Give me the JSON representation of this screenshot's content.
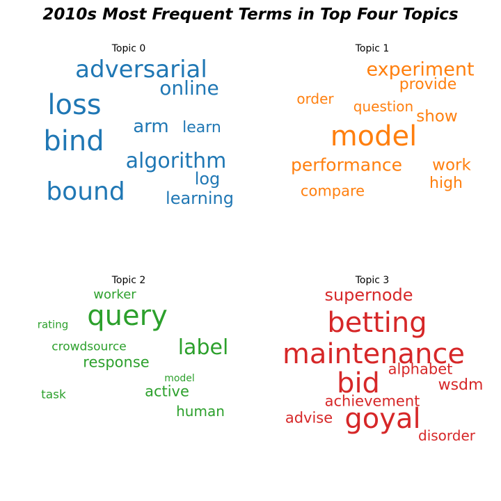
{
  "title": "2010s Most Frequent Terms in Top Four Topics",
  "chart_data": {
    "type": "wordcloud",
    "panels": [
      {
        "title": "Topic 0",
        "color": "#1f77b4",
        "words": [
          {
            "text": "adversarial",
            "weight": 0.85
          },
          {
            "text": "loss",
            "weight": 1.0
          },
          {
            "text": "online",
            "weight": 0.75
          },
          {
            "text": "bind",
            "weight": 1.0
          },
          {
            "text": "arm",
            "weight": 0.65
          },
          {
            "text": "learn",
            "weight": 0.6
          },
          {
            "text": "algorithm",
            "weight": 0.78
          },
          {
            "text": "log",
            "weight": 0.6
          },
          {
            "text": "bound",
            "weight": 0.95
          },
          {
            "text": "learning",
            "weight": 0.6
          }
        ]
      },
      {
        "title": "Topic 1",
        "color": "#ff7f0e",
        "words": [
          {
            "text": "experiment",
            "weight": 0.7
          },
          {
            "text": "provide",
            "weight": 0.6
          },
          {
            "text": "order",
            "weight": 0.5
          },
          {
            "text": "question",
            "weight": 0.5
          },
          {
            "text": "show",
            "weight": 0.6
          },
          {
            "text": "model",
            "weight": 1.0
          },
          {
            "text": "performance",
            "weight": 0.65
          },
          {
            "text": "work",
            "weight": 0.6
          },
          {
            "text": "high",
            "weight": 0.55
          },
          {
            "text": "compare",
            "weight": 0.5
          }
        ]
      },
      {
        "title": "Topic 2",
        "color": "#2ca02c",
        "words": [
          {
            "text": "worker",
            "weight": 0.5
          },
          {
            "text": "query",
            "weight": 1.0
          },
          {
            "text": "rating",
            "weight": 0.4
          },
          {
            "text": "label",
            "weight": 0.8
          },
          {
            "text": "crowdsource",
            "weight": 0.5
          },
          {
            "text": "response",
            "weight": 0.6
          },
          {
            "text": "model",
            "weight": 0.35
          },
          {
            "text": "task",
            "weight": 0.5
          },
          {
            "text": "active",
            "weight": 0.6
          },
          {
            "text": "human",
            "weight": 0.55
          }
        ]
      },
      {
        "title": "Topic 3",
        "color": "#d62728",
        "words": [
          {
            "text": "supernode",
            "weight": 0.6
          },
          {
            "text": "betting",
            "weight": 1.0
          },
          {
            "text": "maintenance",
            "weight": 1.0
          },
          {
            "text": "alphabet",
            "weight": 0.55
          },
          {
            "text": "bid",
            "weight": 0.95
          },
          {
            "text": "wsdm",
            "weight": 0.55
          },
          {
            "text": "achievement",
            "weight": 0.55
          },
          {
            "text": "advise",
            "weight": 0.55
          },
          {
            "text": "goyal",
            "weight": 1.0
          },
          {
            "text": "disorder",
            "weight": 0.5
          }
        ]
      }
    ]
  }
}
